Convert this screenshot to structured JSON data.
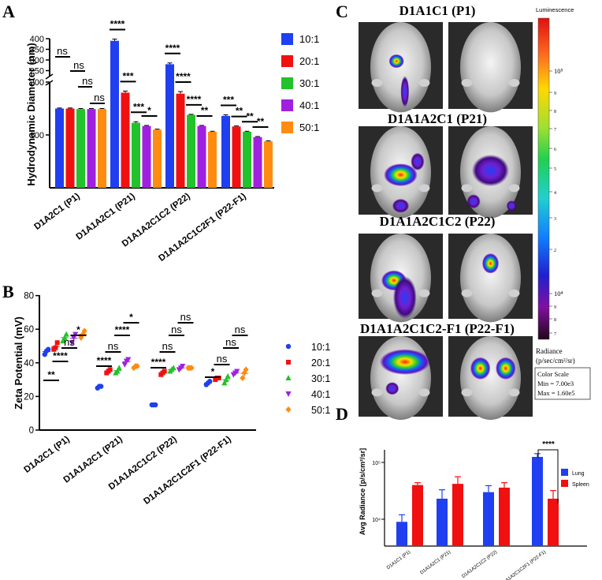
{
  "colors": {
    "c10": "#1f3ff0",
    "c20": "#f01010",
    "c30": "#22c22a",
    "c40": "#a020e0",
    "c50": "#ff8c10",
    "lung": "#1f3ff0",
    "spleen": "#f01010"
  },
  "chart_data": [
    {
      "panel": "A",
      "type": "bar",
      "ylabel": "Hydrodynamic Diameter (nm)",
      "yaxis_break": true,
      "ylim_lower": [
        0,
        200
      ],
      "ylim_upper": [
        200,
        400
      ],
      "yticks_lower": [
        "100",
        "200"
      ],
      "yticks_upper": [
        "250",
        "300",
        "350",
        "400"
      ],
      "categories": [
        "D1A2C1 (P1)",
        "D1A1A2C1 (P21)",
        "D1A1A2C1C2 (P22)",
        "D1A1A2C1C2F1 (P22-F1)"
      ],
      "series": [
        {
          "name": "10:1",
          "values": [
            150,
            390,
            280,
            136
          ],
          "errors": [
            1,
            8,
            6,
            2
          ]
        },
        {
          "name": "20:1",
          "values": [
            150,
            180,
            178,
            116
          ],
          "errors": [
            1,
            3,
            4,
            1
          ]
        },
        {
          "name": "30:1",
          "values": [
            149,
            123,
            138,
            106
          ],
          "errors": [
            1,
            2,
            1,
            1
          ]
        },
        {
          "name": "40:1",
          "values": [
            149,
            117,
            117,
            96
          ],
          "errors": [
            1,
            1,
            1,
            1
          ]
        },
        {
          "name": "50:1",
          "values": [
            149,
            110,
            106,
            88
          ],
          "errors": [
            1,
            1,
            1,
            1
          ]
        }
      ],
      "significance": [
        [
          "ns",
          "ns",
          "ns",
          "ns"
        ],
        [
          "****",
          "***",
          "***",
          "*"
        ],
        [
          "****",
          "****",
          "****",
          "**"
        ],
        [
          "***",
          "**",
          "**",
          "**"
        ]
      ]
    },
    {
      "panel": "B",
      "type": "scatter",
      "ylabel": "Zeta Potential (mV)",
      "ylim": [
        0,
        80
      ],
      "yticks": [
        "0",
        "20",
        "40",
        "60",
        "80"
      ],
      "categories": [
        "D1A2C1 (P1)",
        "D1A1A2C1 (P21)",
        "D1A1A2C1C2 (P22)",
        "D1A1A2C1C2F1 (P22-F1)"
      ],
      "series": [
        {
          "name": "10:1",
          "values": [
            [
              45,
              47,
              48
            ],
            [
              25,
              26,
              26
            ],
            [
              15,
              15,
              15
            ],
            [
              27,
              28,
              29
            ]
          ]
        },
        {
          "name": "20:1",
          "values": [
            [
              48,
              49,
              52
            ],
            [
              34,
              35,
              36
            ],
            [
              33,
              34,
              35
            ],
            [
              30,
              31,
              31
            ]
          ]
        },
        {
          "name": "30:1",
          "values": [
            [
              53,
              55,
              57
            ],
            [
              34,
              35,
              37
            ],
            [
              35,
              36,
              37
            ],
            [
              28,
              30,
              32
            ]
          ]
        },
        {
          "name": "40:1",
          "values": [
            [
              52,
              55,
              57
            ],
            [
              39,
              41,
              42
            ],
            [
              36,
              37,
              38
            ],
            [
              33,
              34,
              35
            ]
          ]
        },
        {
          "name": "50:1",
          "values": [
            [
              55,
              57,
              59
            ],
            [
              37,
              38,
              38
            ],
            [
              37,
              37,
              37
            ],
            [
              31,
              34,
              36
            ]
          ]
        }
      ],
      "significance": [
        [
          "**",
          "****",
          "ns",
          "*"
        ],
        [
          "****",
          "ns",
          "****",
          "*"
        ],
        [
          "****",
          "ns",
          "ns",
          "ns"
        ],
        [
          "*",
          "ns",
          "ns",
          "ns"
        ]
      ]
    },
    {
      "panel": "D",
      "type": "bar",
      "ylabel": "Avg Radiance [p/s/cm²/sr]",
      "yscale": "log",
      "yticks": [
        "10⁴",
        "10⁵"
      ],
      "categories": [
        "D1A1C1 (P1)",
        "D1A1A2C1 (P21)",
        "D1A1A2C1C2 (P22)",
        "D1A1A2C1C2F1 (P22-F1)"
      ],
      "series": [
        {
          "name": "Lung",
          "values": [
            9000,
            23000,
            30000,
            125000
          ],
          "errors": [
            3000,
            10000,
            9000,
            18000
          ]
        },
        {
          "name": "Spleen",
          "values": [
            40000,
            42000,
            36000,
            23000
          ],
          "errors": [
            4000,
            14000,
            8000,
            9000
          ]
        }
      ],
      "significance": "****"
    }
  ],
  "panel_labels": {
    "a": "A",
    "b": "B",
    "c": "C",
    "d": "D"
  },
  "panel_c": {
    "rows": [
      "D1A1C1 (P1)",
      "D1A1A2C1 (P21)",
      "D1A1A2C1C2 (P22)",
      "D1A1A2C1C2-F1 (P22-F1)"
    ],
    "colorbar_title": "Luminescence",
    "colorbar_ticks": [
      "10⁵",
      "9",
      "8",
      "7",
      "6",
      "5",
      "4",
      "3",
      "2",
      "10⁴",
      "9",
      "8",
      "7"
    ],
    "radiance_label": [
      "Radiance",
      "(p/sec/cm²/sr)"
    ],
    "color_scale": [
      "Color Scale",
      "Min = 7.00e3",
      "Max = 1.60e5"
    ]
  }
}
